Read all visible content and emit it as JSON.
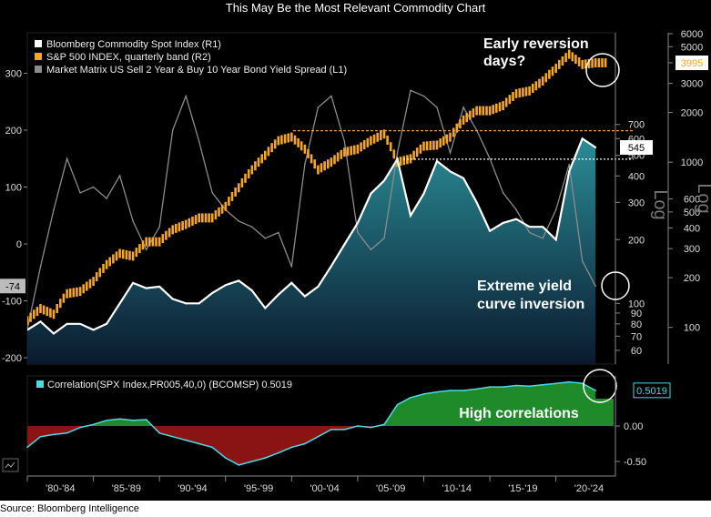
{
  "title": "This May Be the Most Relevant Commodity Chart",
  "source": "Source: Bloomberg Intelligence",
  "colors": {
    "commodity": "#ffffff",
    "spx": "#f5a623",
    "spread": "#8c8c8c",
    "area_top": "#2a8c96",
    "area_bottom": "#0a1a2e",
    "correlation_line": "#4fd8e6",
    "corr_positive": "#1f8a2a",
    "corr_negative": "#8a1414",
    "guide": "#e8a33a"
  },
  "legend": [
    {
      "label": "Bloomberg Commodity Spot Index  (R1)",
      "color": "#ffffff"
    },
    {
      "label": "S&P 500 INDEX, quarterly band (R2)",
      "color": "#f5a623"
    },
    {
      "label": "Market Matrix US Sell 2 Year & Buy 10 Year Bond Yield Spread (L1)",
      "color": "#8c8c8c"
    }
  ],
  "annotations": {
    "reversion": [
      "Early reversion",
      "days?"
    ],
    "inversion": [
      "Extreme yield",
      "curve inversion"
    ],
    "high_corr": "High correlations"
  },
  "log_labels": [
    "Log",
    "Log"
  ],
  "corr_legend": "Correlation(SPX Index,PR005,40,0) (BCOMSP) 0.5019",
  "badges": {
    "spread_last": "-74",
    "commodity_last": "545",
    "spx_last": "3995",
    "corr_last": "0.5019"
  },
  "chart_data": [
    {
      "type": "line",
      "x_ticks": [
        "'80-'84",
        "'85-'89",
        "'90-'94",
        "'95-'99",
        "'00-'04",
        "'05-'09",
        "'10-'14",
        "'15-'19",
        "'20-'24"
      ],
      "left_axis_ticks": [
        "300",
        "200",
        "100",
        "0",
        "-100",
        "-200"
      ],
      "r1_axis_ticks": [
        "700",
        "600",
        "500",
        "400",
        "300",
        "200",
        "100",
        "90",
        "80",
        "70",
        "60"
      ],
      "r2_axis_ticks": [
        "6000",
        "5000",
        "4000",
        "3000",
        "2000",
        "1000",
        "600",
        "500",
        "400",
        "300",
        "200",
        "100"
      ],
      "series": [
        {
          "name": "Bloomberg Commodity Spot Index  (R1)",
          "axis": "R1 (log)",
          "x": [
            1980,
            1981,
            1982,
            1983,
            1984,
            1985,
            1986,
            1987,
            1988,
            1989,
            1990,
            1991,
            1992,
            1993,
            1994,
            1995,
            1996,
            1997,
            1998,
            1999,
            2000,
            2001,
            2002,
            2003,
            2004,
            2005,
            2006,
            2007,
            2008,
            2009,
            2010,
            2011,
            2012,
            2013,
            2014,
            2015,
            2016,
            2017,
            2018,
            2019,
            2020,
            2021,
            2022,
            2023
          ],
          "values": [
            75,
            82,
            72,
            80,
            80,
            75,
            80,
            100,
            125,
            118,
            120,
            105,
            100,
            100,
            112,
            122,
            128,
            115,
            95,
            110,
            125,
            108,
            120,
            150,
            190,
            240,
            330,
            380,
            480,
            260,
            330,
            470,
            420,
            390,
            300,
            220,
            240,
            250,
            230,
            230,
            200,
            420,
            600,
            545
          ]
        },
        {
          "name": "S&P 500 INDEX, quarterly band (R2)",
          "axis": "R2 (log)",
          "x": [
            1980,
            1981,
            1982,
            1983,
            1984,
            1985,
            1986,
            1987,
            1988,
            1989,
            1990,
            1991,
            1992,
            1993,
            1994,
            1995,
            1996,
            1997,
            1998,
            1999,
            2000,
            2001,
            2002,
            2003,
            2004,
            2005,
            2006,
            2007,
            2008,
            2009,
            2010,
            2011,
            2012,
            2013,
            2014,
            2015,
            2016,
            2017,
            2018,
            2019,
            2020,
            2021,
            2022,
            2023
          ],
          "values": [
            110,
            130,
            120,
            160,
            165,
            190,
            240,
            280,
            270,
            330,
            330,
            390,
            420,
            460,
            460,
            540,
            700,
            900,
            1100,
            1350,
            1420,
            1200,
            900,
            1000,
            1150,
            1200,
            1350,
            1480,
            1000,
            1050,
            1250,
            1270,
            1420,
            1800,
            2050,
            2050,
            2200,
            2600,
            2700,
            3100,
            3700,
            4500,
            3900,
            3995
          ]
        },
        {
          "name": "Market Matrix US Sell 2 Year & Buy 10 Year Bond Yield Spread (L1)",
          "axis": "L1 (linear)",
          "x": [
            1980,
            1981,
            1982,
            1983,
            1984,
            1985,
            1986,
            1987,
            1988,
            1989,
            1990,
            1991,
            1992,
            1993,
            1994,
            1995,
            1996,
            1997,
            1998,
            1999,
            2000,
            2001,
            2002,
            2003,
            2004,
            2005,
            2006,
            2007,
            2008,
            2009,
            2010,
            2011,
            2012,
            2013,
            2014,
            2015,
            2016,
            2017,
            2018,
            2019,
            2020,
            2021,
            2022,
            2023
          ],
          "values": [
            -150,
            -40,
            60,
            150,
            90,
            100,
            80,
            120,
            40,
            -10,
            30,
            200,
            260,
            180,
            90,
            60,
            40,
            30,
            10,
            20,
            -40,
            140,
            240,
            260,
            180,
            20,
            -10,
            10,
            160,
            270,
            260,
            240,
            160,
            240,
            200,
            150,
            90,
            60,
            20,
            10,
            60,
            140,
            -30,
            -74
          ]
        }
      ],
      "guides": [
        {
          "axis": "R1",
          "value": 480,
          "style": "white dotted"
        },
        {
          "axis": "R2",
          "value": 1550,
          "style": "orange dashed"
        }
      ]
    },
    {
      "type": "area",
      "title": "Correlation(SPX Index,PR005,40,0) (BCOMSP) 0.5019",
      "y_ticks": [
        "0.00",
        "-0.50"
      ],
      "ylim": [
        -0.62,
        0.68
      ],
      "x": [
        1980,
        1981,
        1982,
        1983,
        1984,
        1985,
        1986,
        1987,
        1988,
        1989,
        1990,
        1991,
        1992,
        1993,
        1994,
        1995,
        1996,
        1997,
        1998,
        1999,
        2000,
        2001,
        2002,
        2003,
        2004,
        2005,
        2006,
        2007,
        2008,
        2009,
        2010,
        2011,
        2012,
        2013,
        2014,
        2015,
        2016,
        2017,
        2018,
        2019,
        2020,
        2021,
        2022,
        2023
      ],
      "values": [
        -0.3,
        -0.15,
        -0.12,
        -0.1,
        -0.02,
        0.02,
        0.08,
        0.1,
        0.08,
        0.09,
        -0.1,
        -0.15,
        -0.2,
        -0.25,
        -0.3,
        -0.45,
        -0.55,
        -0.5,
        -0.45,
        -0.38,
        -0.3,
        -0.25,
        -0.15,
        -0.05,
        -0.05,
        0.0,
        -0.02,
        0.02,
        0.3,
        0.4,
        0.45,
        0.48,
        0.5,
        0.5,
        0.52,
        0.55,
        0.55,
        0.57,
        0.56,
        0.58,
        0.6,
        0.62,
        0.6,
        0.5
      ]
    }
  ]
}
